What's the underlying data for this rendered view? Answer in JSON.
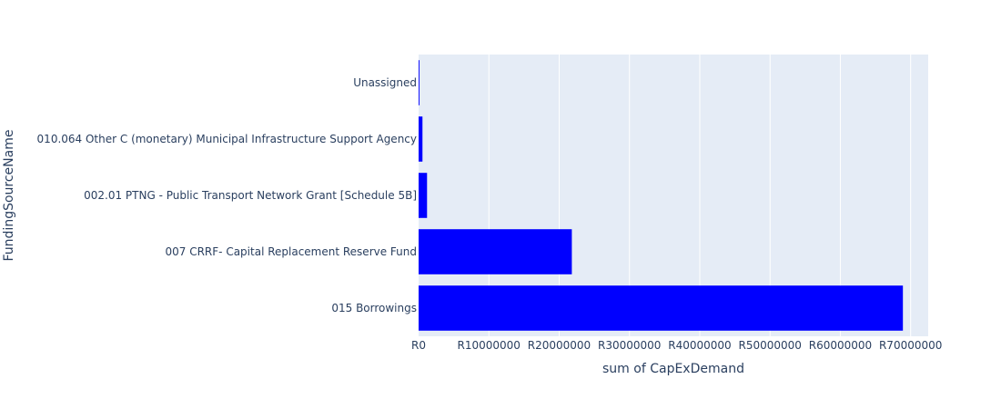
{
  "chart_data": {
    "type": "bar",
    "orientation": "horizontal",
    "categories": [
      "015 Borrowings",
      "007 CRRF- Capital Replacement Reserve Fund",
      "002.01 PTNG - Public Transport Network Grant [Schedule 5B]",
      "010.064 Other C (monetary) Municipal Infrastructure Support Agency",
      "Unassigned"
    ],
    "values": [
      68900000,
      21800000,
      1200000,
      550000,
      120000
    ],
    "xlabel": "sum of CapExDemand",
    "ylabel": "FundingSourceName",
    "xlim": [
      0,
      72500000
    ],
    "x_ticks": [
      0,
      10000000,
      20000000,
      30000000,
      40000000,
      50000000,
      60000000,
      70000000
    ],
    "x_tick_labels": [
      "R0",
      "R10000000",
      "R20000000",
      "R30000000",
      "R40000000",
      "R50000000",
      "R60000000",
      "R70000000"
    ],
    "grid": true,
    "colors": {
      "bar": "#0000ff",
      "plot_background": "#e5ecf6",
      "grid": "#ffffff",
      "text": "#2a3f5f"
    }
  }
}
